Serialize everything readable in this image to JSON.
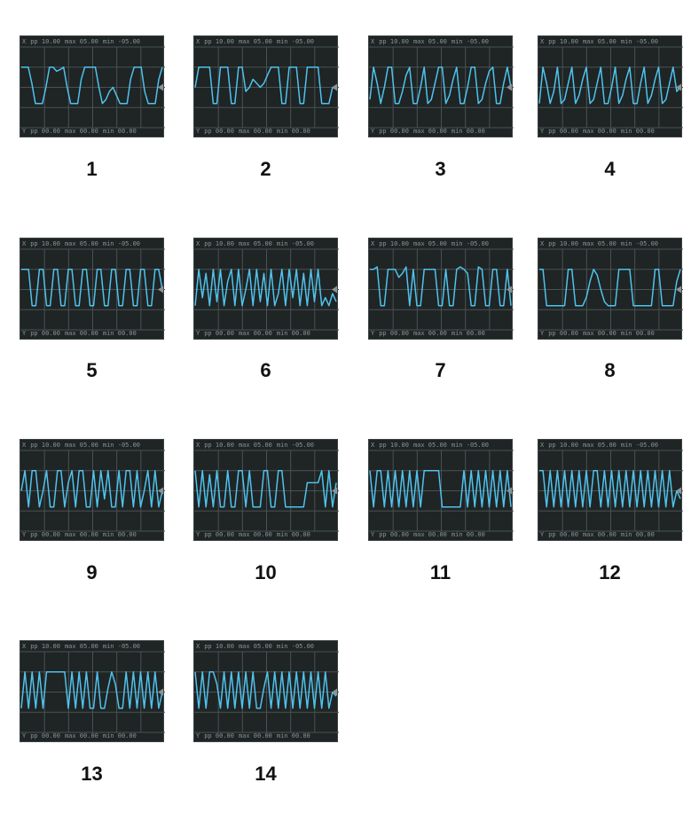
{
  "readout": {
    "top": [
      {
        "label": "X",
        "value": ""
      },
      {
        "label": "pp",
        "value": "10.00"
      },
      {
        "label": "max",
        "value": "05.00"
      },
      {
        "label": "min",
        "value": "-05.00"
      }
    ],
    "bottom": [
      {
        "label": "Y",
        "value": ""
      },
      {
        "label": "pp",
        "value": "00.00"
      },
      {
        "label": "max",
        "value": "00.00"
      },
      {
        "label": "min",
        "value": "00.00"
      }
    ]
  },
  "colors": {
    "trace": "#4fc3ec",
    "grid": "#4a5254",
    "bg": "#1f2425",
    "marker": "#8a9496"
  },
  "panels": [
    {
      "label": "1",
      "wave": [
        0.75,
        0.75,
        0.75,
        0.55,
        0.3,
        0.3,
        0.3,
        0.5,
        0.75,
        0.75,
        0.7,
        0.72,
        0.75,
        0.5,
        0.3,
        0.3,
        0.3,
        0.6,
        0.75,
        0.75,
        0.75,
        0.75,
        0.5,
        0.3,
        0.35,
        0.45,
        0.5,
        0.4,
        0.3,
        0.3,
        0.3,
        0.6,
        0.75,
        0.75,
        0.75,
        0.45,
        0.3,
        0.3,
        0.3,
        0.6,
        0.75
      ]
    },
    {
      "label": "2",
      "wave": [
        0.5,
        0.75,
        0.75,
        0.75,
        0.75,
        0.3,
        0.3,
        0.75,
        0.75,
        0.75,
        0.3,
        0.3,
        0.75,
        0.75,
        0.45,
        0.5,
        0.6,
        0.55,
        0.5,
        0.55,
        0.65,
        0.75,
        0.75,
        0.75,
        0.3,
        0.3,
        0.75,
        0.75,
        0.75,
        0.3,
        0.3,
        0.75,
        0.75,
        0.75,
        0.75,
        0.3,
        0.3,
        0.3,
        0.5,
        0.5
      ]
    },
    {
      "label": "3",
      "wave": [
        0.35,
        0.75,
        0.55,
        0.3,
        0.5,
        0.75,
        0.75,
        0.3,
        0.3,
        0.45,
        0.65,
        0.75,
        0.3,
        0.3,
        0.5,
        0.75,
        0.3,
        0.35,
        0.55,
        0.75,
        0.75,
        0.3,
        0.4,
        0.6,
        0.75,
        0.3,
        0.3,
        0.5,
        0.75,
        0.75,
        0.3,
        0.35,
        0.55,
        0.7,
        0.75,
        0.3,
        0.3,
        0.55,
        0.75,
        0.5
      ]
    },
    {
      "label": "4",
      "wave": [
        0.3,
        0.75,
        0.55,
        0.3,
        0.45,
        0.75,
        0.3,
        0.35,
        0.55,
        0.75,
        0.3,
        0.4,
        0.6,
        0.75,
        0.3,
        0.35,
        0.55,
        0.75,
        0.3,
        0.3,
        0.5,
        0.75,
        0.3,
        0.4,
        0.6,
        0.75,
        0.3,
        0.3,
        0.55,
        0.75,
        0.3,
        0.4,
        0.6,
        0.75,
        0.3,
        0.35,
        0.55,
        0.75,
        0.45,
        0.5
      ]
    },
    {
      "label": "5",
      "wave": [
        0.75,
        0.75,
        0.75,
        0.3,
        0.3,
        0.75,
        0.75,
        0.3,
        0.3,
        0.75,
        0.75,
        0.3,
        0.3,
        0.75,
        0.75,
        0.3,
        0.3,
        0.75,
        0.75,
        0.3,
        0.3,
        0.75,
        0.75,
        0.3,
        0.3,
        0.75,
        0.75,
        0.3,
        0.3,
        0.75,
        0.75,
        0.3,
        0.3,
        0.75,
        0.75,
        0.3,
        0.3,
        0.75,
        0.75,
        0.5
      ]
    },
    {
      "label": "6",
      "wave": [
        0.3,
        0.75,
        0.4,
        0.7,
        0.3,
        0.75,
        0.35,
        0.75,
        0.3,
        0.6,
        0.75,
        0.3,
        0.75,
        0.3,
        0.5,
        0.75,
        0.3,
        0.75,
        0.35,
        0.7,
        0.3,
        0.75,
        0.3,
        0.45,
        0.75,
        0.3,
        0.75,
        0.4,
        0.75,
        0.3,
        0.7,
        0.3,
        0.75,
        0.35,
        0.75,
        0.3,
        0.4,
        0.3,
        0.45,
        0.35
      ]
    },
    {
      "label": "7",
      "wave": [
        0.75,
        0.75,
        0.78,
        0.3,
        0.3,
        0.75,
        0.75,
        0.75,
        0.65,
        0.7,
        0.78,
        0.3,
        0.75,
        0.3,
        0.3,
        0.75,
        0.75,
        0.75,
        0.75,
        0.3,
        0.3,
        0.75,
        0.3,
        0.3,
        0.75,
        0.78,
        0.75,
        0.7,
        0.3,
        0.3,
        0.78,
        0.75,
        0.3,
        0.3,
        0.75,
        0.75,
        0.3,
        0.3,
        0.75,
        0.3
      ]
    },
    {
      "label": "8",
      "wave": [
        0.75,
        0.75,
        0.3,
        0.3,
        0.3,
        0.3,
        0.3,
        0.3,
        0.75,
        0.75,
        0.3,
        0.3,
        0.3,
        0.4,
        0.6,
        0.75,
        0.68,
        0.5,
        0.35,
        0.3,
        0.3,
        0.3,
        0.75,
        0.75,
        0.75,
        0.75,
        0.3,
        0.3,
        0.3,
        0.3,
        0.3,
        0.3,
        0.75,
        0.75,
        0.3,
        0.3,
        0.3,
        0.3,
        0.6,
        0.75
      ]
    },
    {
      "label": "9",
      "wave": [
        0.5,
        0.75,
        0.3,
        0.75,
        0.75,
        0.3,
        0.5,
        0.75,
        0.3,
        0.3,
        0.75,
        0.75,
        0.3,
        0.6,
        0.75,
        0.3,
        0.75,
        0.75,
        0.3,
        0.3,
        0.75,
        0.3,
        0.75,
        0.4,
        0.75,
        0.3,
        0.3,
        0.75,
        0.3,
        0.75,
        0.75,
        0.3,
        0.75,
        0.3,
        0.5,
        0.75,
        0.3,
        0.75,
        0.3,
        0.5
      ]
    },
    {
      "label": "10",
      "wave": [
        0.75,
        0.3,
        0.75,
        0.3,
        0.7,
        0.3,
        0.75,
        0.3,
        0.3,
        0.75,
        0.3,
        0.3,
        0.75,
        0.75,
        0.3,
        0.75,
        0.3,
        0.3,
        0.3,
        0.75,
        0.75,
        0.3,
        0.3,
        0.75,
        0.75,
        0.3,
        0.3,
        0.3,
        0.3,
        0.3,
        0.3,
        0.6,
        0.6,
        0.6,
        0.6,
        0.75,
        0.3,
        0.75,
        0.3,
        0.6
      ]
    },
    {
      "label": "11",
      "wave": [
        0.75,
        0.3,
        0.75,
        0.75,
        0.3,
        0.75,
        0.3,
        0.75,
        0.3,
        0.75,
        0.3,
        0.75,
        0.3,
        0.75,
        0.3,
        0.75,
        0.75,
        0.75,
        0.75,
        0.75,
        0.3,
        0.3,
        0.3,
        0.3,
        0.3,
        0.3,
        0.75,
        0.3,
        0.75,
        0.3,
        0.75,
        0.3,
        0.75,
        0.3,
        0.75,
        0.3,
        0.75,
        0.3,
        0.75,
        0.3
      ]
    },
    {
      "label": "12",
      "wave": [
        0.75,
        0.75,
        0.3,
        0.75,
        0.3,
        0.75,
        0.3,
        0.75,
        0.3,
        0.75,
        0.3,
        0.75,
        0.3,
        0.75,
        0.3,
        0.75,
        0.75,
        0.3,
        0.75,
        0.3,
        0.75,
        0.3,
        0.75,
        0.3,
        0.75,
        0.3,
        0.75,
        0.3,
        0.75,
        0.3,
        0.75,
        0.3,
        0.75,
        0.3,
        0.75,
        0.3,
        0.75,
        0.3,
        0.5,
        0.4
      ]
    },
    {
      "label": "13",
      "wave": [
        0.3,
        0.75,
        0.3,
        0.75,
        0.3,
        0.75,
        0.3,
        0.75,
        0.75,
        0.75,
        0.75,
        0.75,
        0.75,
        0.3,
        0.75,
        0.3,
        0.75,
        0.3,
        0.75,
        0.3,
        0.3,
        0.75,
        0.3,
        0.3,
        0.55,
        0.75,
        0.6,
        0.3,
        0.3,
        0.75,
        0.3,
        0.75,
        0.3,
        0.75,
        0.3,
        0.75,
        0.3,
        0.75,
        0.3,
        0.5
      ]
    },
    {
      "label": "14",
      "wave": [
        0.75,
        0.3,
        0.75,
        0.3,
        0.75,
        0.75,
        0.6,
        0.3,
        0.75,
        0.3,
        0.75,
        0.3,
        0.75,
        0.3,
        0.75,
        0.3,
        0.75,
        0.3,
        0.3,
        0.55,
        0.75,
        0.3,
        0.75,
        0.3,
        0.75,
        0.3,
        0.75,
        0.3,
        0.75,
        0.3,
        0.75,
        0.3,
        0.75,
        0.3,
        0.75,
        0.3,
        0.75,
        0.3,
        0.5,
        0.45
      ]
    }
  ]
}
